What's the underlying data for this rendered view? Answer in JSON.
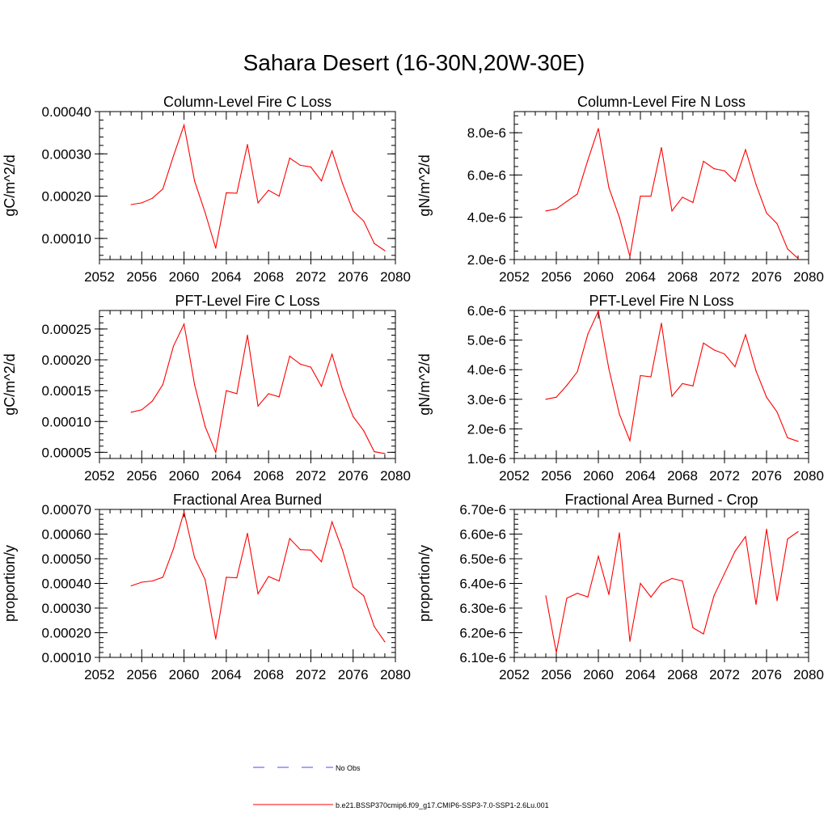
{
  "figure": {
    "title": "Sahara Desert (16-30N,20W-30E)",
    "series_color": "#ff0000",
    "obs_color": "#4a4aff"
  },
  "legend": {
    "items": [
      {
        "label": "No Obs",
        "style": "dashed",
        "color": "#4a4aff"
      },
      {
        "label": "b.e21.BSSP370cmip6.f09_g17.CMIP6-SSP3-7.0-SSP1-2.6Lu.001",
        "style": "solid",
        "color": "#ff0000"
      }
    ]
  },
  "chart_data": [
    {
      "type": "line",
      "title": "Column-Level Fire C Loss",
      "ylabel": "gC/m^2/d",
      "xlim": [
        2052,
        2080
      ],
      "x_ticks": [
        "2052",
        "2056",
        "2060",
        "2064",
        "2068",
        "2072",
        "2076",
        "2080"
      ],
      "ylim": [
        5e-05,
        0.0004
      ],
      "y_ticks": [
        {
          "v": 0.0001,
          "label": "0.00010"
        },
        {
          "v": 0.0002,
          "label": "0.00020"
        },
        {
          "v": 0.0003,
          "label": "0.00030"
        },
        {
          "v": 0.0004,
          "label": "0.00040"
        }
      ],
      "x": [
        2055,
        2056,
        2057,
        2058,
        2059,
        2060,
        2061,
        2062,
        2063,
        2064,
        2065,
        2066,
        2067,
        2068,
        2069,
        2070,
        2071,
        2072,
        2073,
        2074,
        2075,
        2076,
        2077,
        2078,
        2079
      ],
      "y": [
        0.00018,
        0.000184,
        0.000195,
        0.000217,
        0.000295,
        0.000368,
        0.000236,
        0.000161,
        7.7e-05,
        0.000208,
        0.000207,
        0.000322,
        0.000184,
        0.000214,
        0.0002,
        0.00029,
        0.000273,
        0.000269,
        0.000236,
        0.000307,
        0.00023,
        0.000165,
        0.000141,
        8.8e-05,
        7.1e-05
      ]
    },
    {
      "type": "line",
      "title": "Column-Level Fire N Loss",
      "ylabel": "gN/m^2/d",
      "xlim": [
        2052,
        2080
      ],
      "x_ticks": [
        "2052",
        "2056",
        "2060",
        "2064",
        "2068",
        "2072",
        "2076",
        "2080"
      ],
      "ylim": [
        2e-06,
        9e-06
      ],
      "y_ticks": [
        {
          "v": 2e-06,
          "label": "2.0e-6"
        },
        {
          "v": 4e-06,
          "label": "4.0e-6"
        },
        {
          "v": 6e-06,
          "label": "6.0e-6"
        },
        {
          "v": 8e-06,
          "label": "8.0e-6"
        }
      ],
      "x": [
        2055,
        2056,
        2057,
        2058,
        2059,
        2060,
        2061,
        2062,
        2063,
        2064,
        2065,
        2066,
        2067,
        2068,
        2069,
        2070,
        2071,
        2072,
        2073,
        2074,
        2075,
        2076,
        2077,
        2078,
        2079
      ],
      "y": [
        4.3e-06,
        4.4e-06,
        4.75e-06,
        5.1e-06,
        6.7e-06,
        8.2e-06,
        5.4e-06,
        4e-06,
        2.15e-06,
        5e-06,
        5e-06,
        7.3e-06,
        4.3e-06,
        4.95e-06,
        4.7e-06,
        6.65e-06,
        6.3e-06,
        6.2e-06,
        5.7e-06,
        7.2e-06,
        5.55e-06,
        4.2e-06,
        3.7e-06,
        2.5e-06,
        2.05e-06
      ]
    },
    {
      "type": "line",
      "title": "PFT-Level Fire C Loss",
      "ylabel": "gC/m^2/d",
      "xlim": [
        2052,
        2080
      ],
      "x_ticks": [
        "2052",
        "2056",
        "2060",
        "2064",
        "2068",
        "2072",
        "2076",
        "2080"
      ],
      "ylim": [
        4e-05,
        0.00028
      ],
      "y_ticks": [
        {
          "v": 5e-05,
          "label": "0.00005"
        },
        {
          "v": 0.0001,
          "label": "0.00010"
        },
        {
          "v": 0.00015,
          "label": "0.00015"
        },
        {
          "v": 0.0002,
          "label": "0.00020"
        },
        {
          "v": 0.00025,
          "label": "0.00025"
        }
      ],
      "x": [
        2055,
        2056,
        2057,
        2058,
        2059,
        2060,
        2061,
        2062,
        2063,
        2064,
        2065,
        2066,
        2067,
        2068,
        2069,
        2070,
        2071,
        2072,
        2073,
        2074,
        2075,
        2076,
        2077,
        2078,
        2079
      ],
      "y": [
        0.000115,
        0.000119,
        0.000133,
        0.00016,
        0.000222,
        0.000258,
        0.00016,
        9.2e-05,
        5e-05,
        0.00015,
        0.000145,
        0.00024,
        0.000125,
        0.000145,
        0.00014,
        0.000206,
        0.000193,
        0.000188,
        0.000157,
        0.000209,
        0.000152,
        0.000108,
        8.5e-05,
        5.1e-05,
        4.8e-05
      ]
    },
    {
      "type": "line",
      "title": "PFT-Level Fire N Loss",
      "ylabel": "gN/m^2/d",
      "xlim": [
        2052,
        2080
      ],
      "x_ticks": [
        "2052",
        "2056",
        "2060",
        "2064",
        "2068",
        "2072",
        "2076",
        "2080"
      ],
      "ylim": [
        1e-06,
        6e-06
      ],
      "y_ticks": [
        {
          "v": 1e-06,
          "label": "1.0e-6"
        },
        {
          "v": 2e-06,
          "label": "2.0e-6"
        },
        {
          "v": 3e-06,
          "label": "3.0e-6"
        },
        {
          "v": 4e-06,
          "label": "4.0e-6"
        },
        {
          "v": 5e-06,
          "label": "5.0e-6"
        },
        {
          "v": 6e-06,
          "label": "6.0e-6"
        }
      ],
      "x": [
        2055,
        2056,
        2057,
        2058,
        2059,
        2060,
        2061,
        2062,
        2063,
        2064,
        2065,
        2066,
        2067,
        2068,
        2069,
        2070,
        2071,
        2072,
        2073,
        2074,
        2075,
        2076,
        2077,
        2078,
        2079
      ],
      "y": [
        3e-06,
        3.07e-06,
        3.47e-06,
        3.93e-06,
        5.2e-06,
        5.98e-06,
        4.03e-06,
        2.5e-06,
        1.6e-06,
        3.8e-06,
        3.76e-06,
        5.57e-06,
        3.1e-06,
        3.53e-06,
        3.45e-06,
        4.9e-06,
        4.67e-06,
        4.53e-06,
        4.1e-06,
        5.18e-06,
        3.96e-06,
        3.07e-06,
        2.57e-06,
        1.7e-06,
        1.58e-06
      ]
    },
    {
      "type": "line",
      "title": "Fractional Area Burned",
      "ylabel": "proportion/y",
      "xlim": [
        2052,
        2080
      ],
      "x_ticks": [
        "2052",
        "2056",
        "2060",
        "2064",
        "2068",
        "2072",
        "2076",
        "2080"
      ],
      "ylim": [
        0.0001,
        0.0007
      ],
      "y_ticks": [
        {
          "v": 0.0001,
          "label": "0.00010"
        },
        {
          "v": 0.0002,
          "label": "0.00020"
        },
        {
          "v": 0.0003,
          "label": "0.00030"
        },
        {
          "v": 0.0004,
          "label": "0.00040"
        },
        {
          "v": 0.0005,
          "label": "0.00050"
        },
        {
          "v": 0.0006,
          "label": "0.00060"
        },
        {
          "v": 0.0007,
          "label": "0.00070"
        }
      ],
      "x": [
        2055,
        2056,
        2057,
        2058,
        2059,
        2060,
        2061,
        2062,
        2063,
        2064,
        2065,
        2066,
        2067,
        2068,
        2069,
        2070,
        2071,
        2072,
        2073,
        2074,
        2075,
        2076,
        2077,
        2078,
        2079
      ],
      "y": [
        0.00039,
        0.000405,
        0.00041,
        0.000425,
        0.00054,
        0.00069,
        0.000505,
        0.000415,
        0.000175,
        0.000425,
        0.000423,
        0.000603,
        0.000358,
        0.000428,
        0.00041,
        0.000582,
        0.000537,
        0.000535,
        0.000488,
        0.00065,
        0.000535,
        0.000385,
        0.00035,
        0.000225,
        0.000163
      ]
    },
    {
      "type": "line",
      "title": "Fractional Area Burned - Crop",
      "ylabel": "proportion/y",
      "xlim": [
        2052,
        2080
      ],
      "x_ticks": [
        "2052",
        "2056",
        "2060",
        "2064",
        "2068",
        "2072",
        "2076",
        "2080"
      ],
      "ylim": [
        6.1e-06,
        6.7e-06
      ],
      "y_ticks": [
        {
          "v": 6.1e-06,
          "label": "6.10e-6"
        },
        {
          "v": 6.2e-06,
          "label": "6.20e-6"
        },
        {
          "v": 6.3e-06,
          "label": "6.30e-6"
        },
        {
          "v": 6.4e-06,
          "label": "6.40e-6"
        },
        {
          "v": 6.5e-06,
          "label": "6.50e-6"
        },
        {
          "v": 6.6e-06,
          "label": "6.60e-6"
        },
        {
          "v": 6.7e-06,
          "label": "6.70e-6"
        }
      ],
      "x": [
        2055,
        2056,
        2057,
        2058,
        2059,
        2060,
        2061,
        2062,
        2063,
        2064,
        2065,
        2066,
        2067,
        2068,
        2069,
        2070,
        2071,
        2072,
        2073,
        2074,
        2075,
        2076,
        2077,
        2078,
        2079
      ],
      "y": [
        6.35e-06,
        6.12e-06,
        6.34e-06,
        6.36e-06,
        6.345e-06,
        6.51e-06,
        6.355e-06,
        6.605e-06,
        6.165e-06,
        6.4e-06,
        6.345e-06,
        6.4e-06,
        6.42e-06,
        6.41e-06,
        6.22e-06,
        6.195e-06,
        6.35e-06,
        6.44e-06,
        6.53e-06,
        6.59e-06,
        6.315e-06,
        6.62e-06,
        6.33e-06,
        6.58e-06,
        6.61e-06
      ]
    }
  ]
}
